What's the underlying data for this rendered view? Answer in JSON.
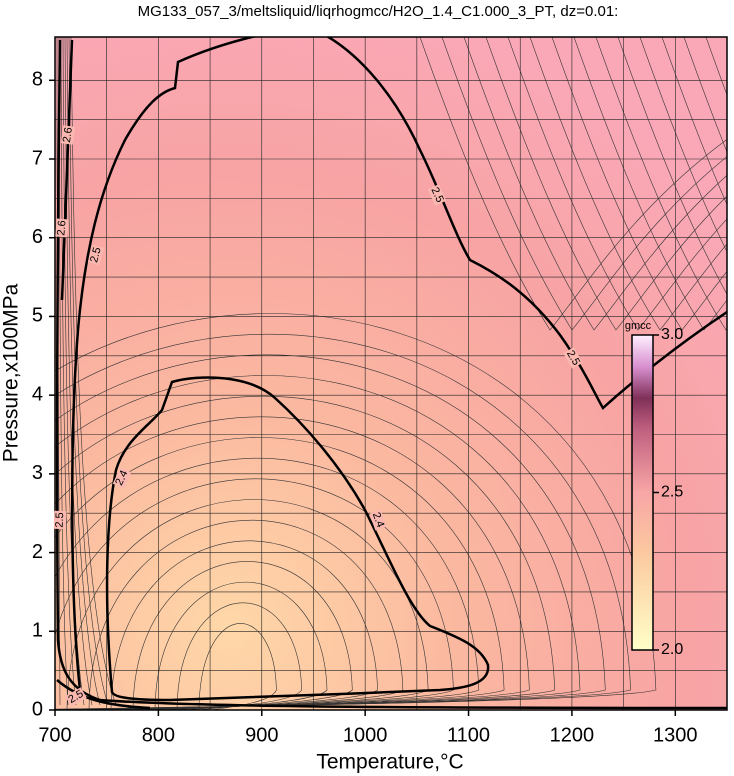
{
  "chart_data": {
    "type": "contour",
    "title": "MG133_057_3/meltsliquid/liqrhogmcc/H2O_1.4_C1.000_3_PT, dz=0.01:",
    "x_label": "Temperature,°C",
    "y_label": "Pressure,x100MPa",
    "xlim": [
      700,
      1350
    ],
    "ylim": [
      0,
      8.55
    ],
    "xticks": [
      700,
      800,
      900,
      1000,
      1100,
      1200,
      1300
    ],
    "yticks": [
      0,
      1,
      2,
      3,
      4,
      5,
      6,
      7,
      8
    ],
    "xminor": [
      750,
      850,
      950,
      1050,
      1150,
      1250
    ],
    "yminor": [
      0.5,
      1.5,
      2.5,
      3.5,
      4.5,
      5.5,
      6.5,
      7.5
    ],
    "grid": true,
    "contour_levels": [
      2.4,
      2.5,
      2.6
    ],
    "contour_labels": [
      2.6,
      2.6,
      2.5,
      2.5,
      2.5,
      2.4,
      2.4,
      2.5,
      2.5
    ],
    "colorbar": {
      "label": "gmcc",
      "lim": [
        2,
        3
      ],
      "ticks": [
        {
          "value": 2,
          "label": "2.0"
        },
        2.5,
        {
          "value": 3,
          "label": "3.0"
        }
      ]
    }
  }
}
